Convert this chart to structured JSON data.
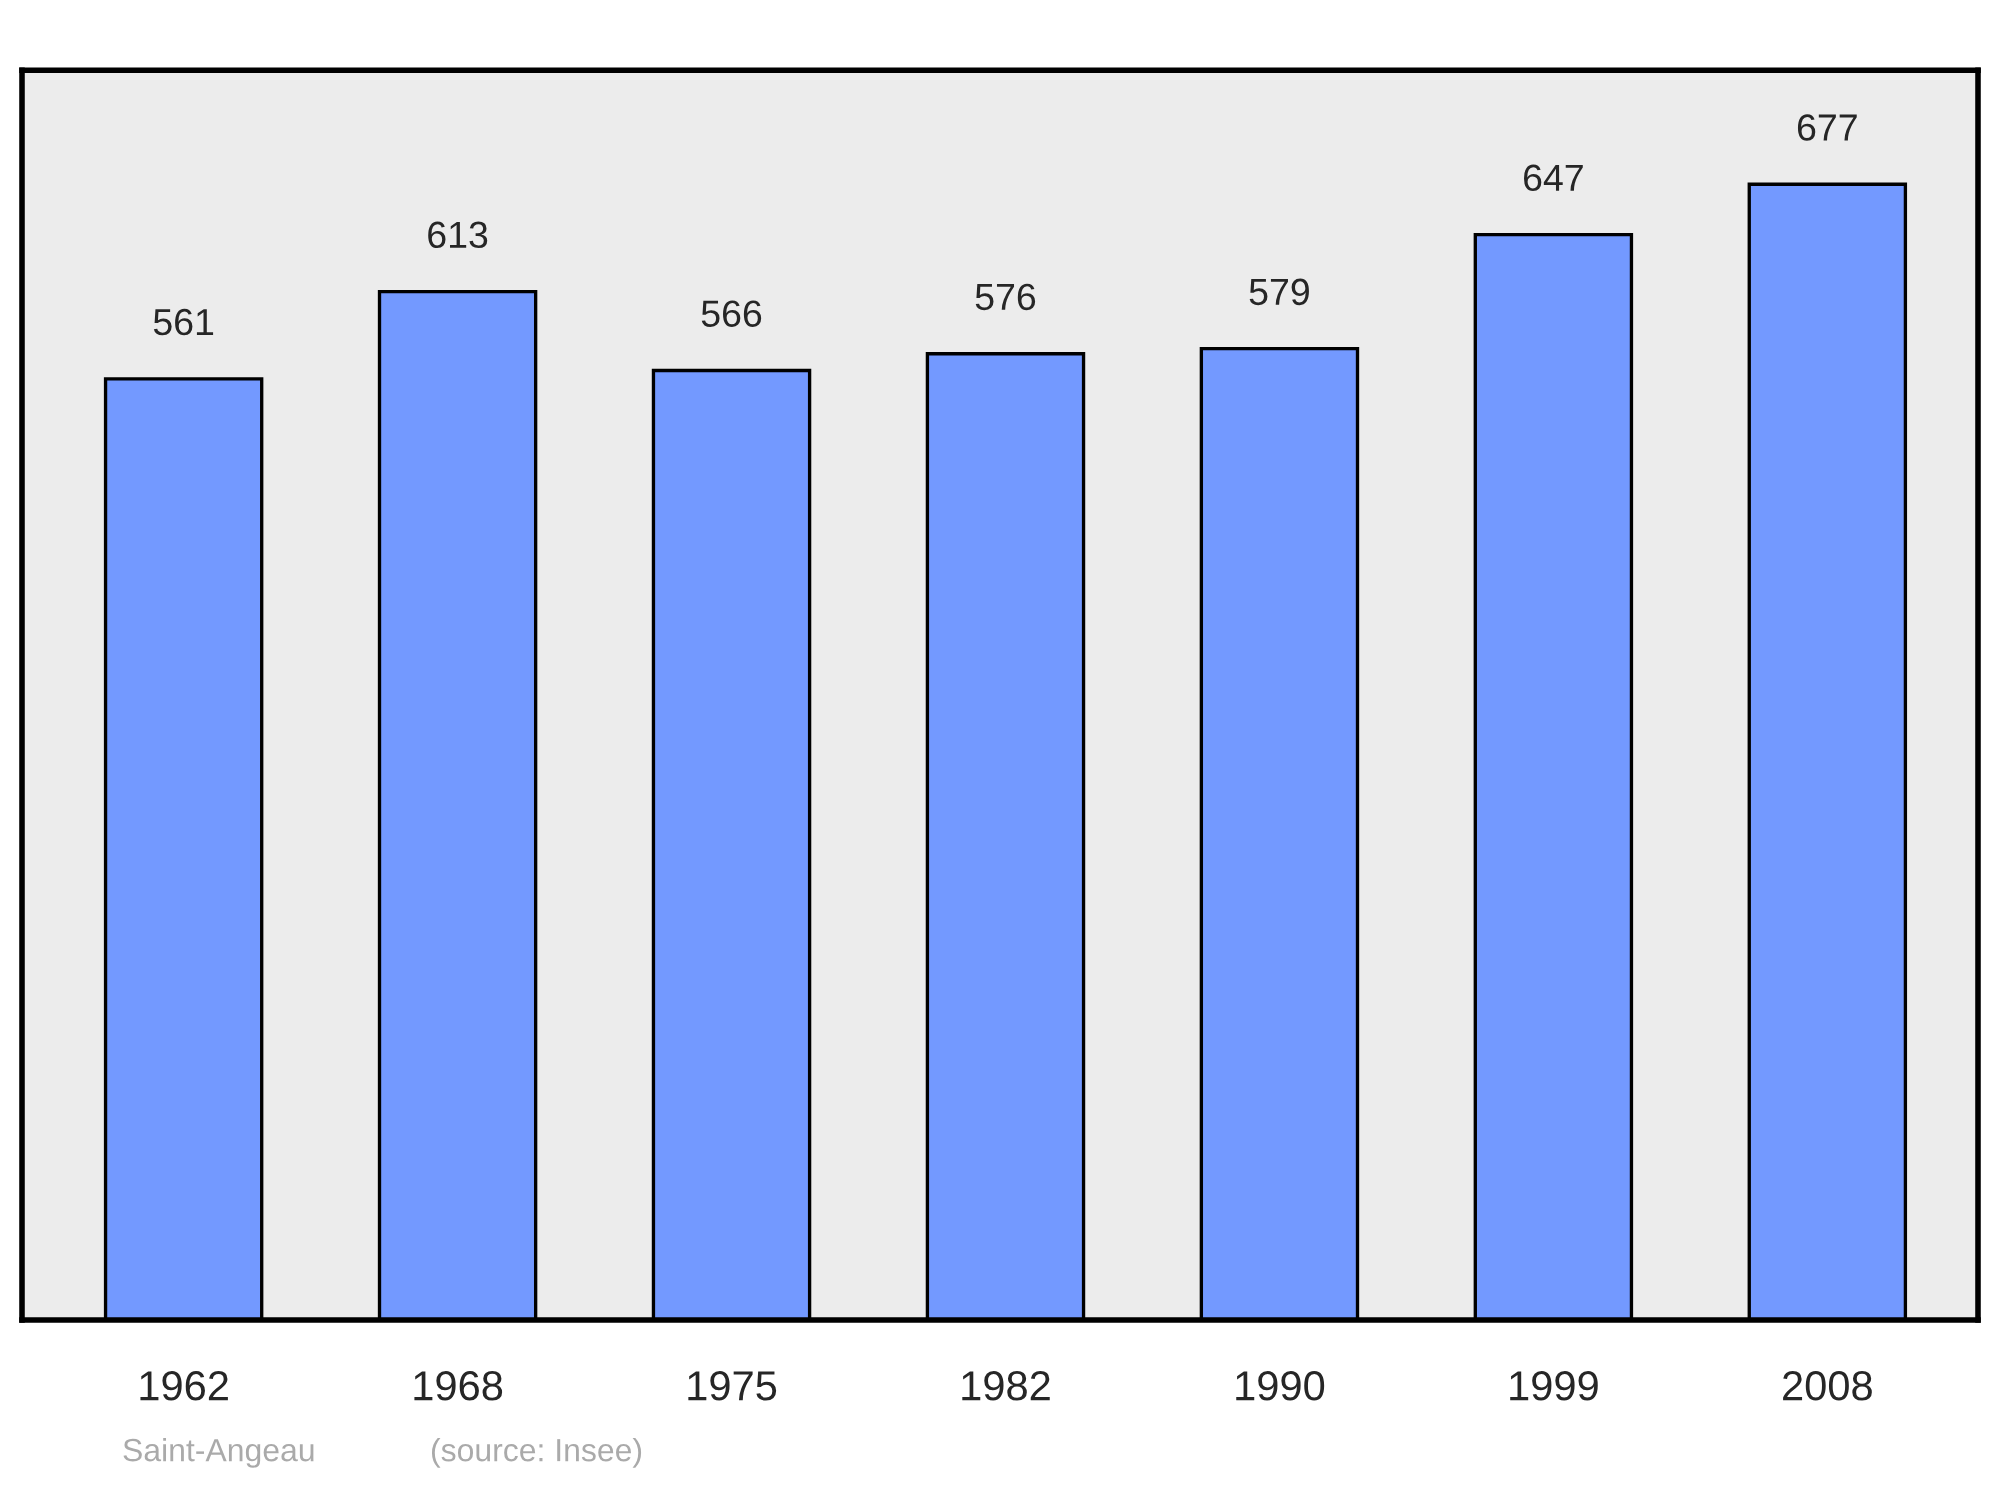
{
  "chart_data": {
    "type": "bar",
    "categories": [
      "1962",
      "1968",
      "1975",
      "1982",
      "1990",
      "1999",
      "2008"
    ],
    "values": [
      561,
      613,
      566,
      576,
      579,
      647,
      677
    ],
    "color": "#7399ff",
    "data_labels": true,
    "ylim": [
      0,
      745
    ],
    "tick_labels": "x",
    "grid": false,
    "annotations": [
      "Saint-Angeau",
      "(source: Insee)"
    ]
  }
}
